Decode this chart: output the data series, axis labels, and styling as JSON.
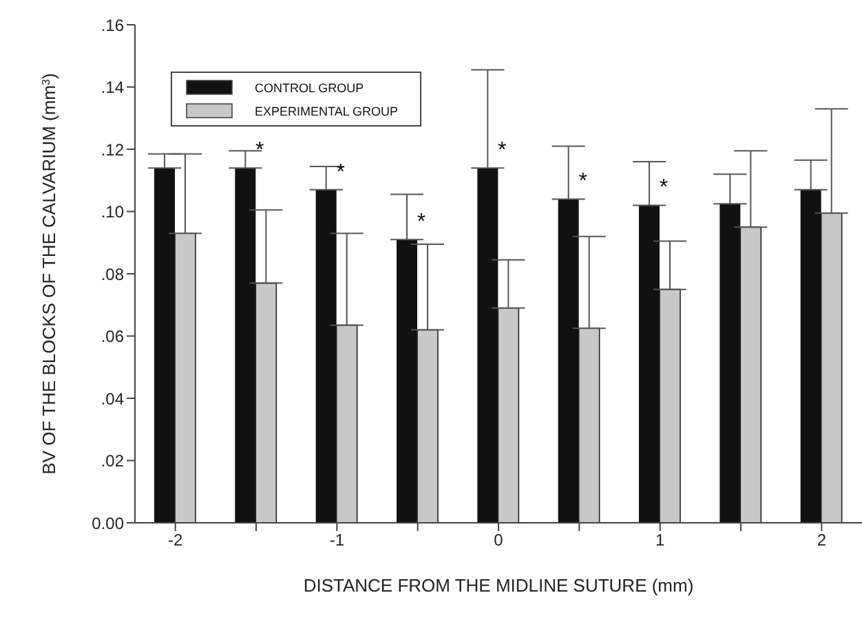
{
  "chart_data": {
    "type": "bar",
    "xlabel": "DISTANCE FROM THE MIDLINE SUTURE (mm)",
    "ylabel": "BV OF THE BLOCKS OF THE CALVARIUM (mm$^{3}$)",
    "categories": [
      "-2",
      null,
      "-1",
      null,
      "0",
      null,
      "1",
      null,
      "2"
    ],
    "series": [
      {
        "name": "CONTROL GROUP",
        "color": "#111111",
        "values": [
          0.114,
          0.114,
          0.107,
          0.091,
          0.114,
          0.104,
          0.102,
          0.1025,
          0.107
        ],
        "errors": [
          [
            0.114,
            0.1185
          ],
          [
            0.114,
            0.1195
          ],
          [
            0.107,
            0.1145
          ],
          [
            0.091,
            0.1055
          ],
          [
            0.114,
            0.1455
          ],
          [
            0.104,
            0.121
          ],
          [
            0.102,
            0.116
          ],
          [
            0.1025,
            0.112
          ],
          [
            0.107,
            0.1165
          ]
        ],
        "value_labels": [
          null,
          "*",
          "*",
          "*",
          "*",
          "*",
          "*",
          null,
          null
        ]
      },
      {
        "name": "EXPERIMENTAL GROUP",
        "color": "#c8c8c8",
        "values": [
          0.093,
          0.077,
          0.0635,
          0.062,
          0.069,
          0.0625,
          0.075,
          0.095,
          0.0995
        ],
        "errors": [
          [
            0.093,
            0.1185
          ],
          [
            0.077,
            0.1005
          ],
          [
            0.0635,
            0.093
          ],
          [
            0.062,
            0.0895
          ],
          [
            0.069,
            0.0845
          ],
          [
            0.0625,
            0.092
          ],
          [
            0.075,
            0.0905
          ],
          [
            0.095,
            0.1195
          ],
          [
            0.0995,
            0.133
          ]
        ]
      }
    ],
    "ylim": [
      0,
      0.16
    ],
    "yticks": [
      {
        "value": 0,
        "label": "0.00"
      },
      {
        "value": 0.02,
        "label": ".02"
      },
      {
        "value": 0.04,
        "label": ".04"
      },
      {
        "value": 0.06,
        "label": ".06"
      },
      {
        "value": 0.08,
        "label": ".08"
      },
      {
        "value": 0.1,
        "label": ".10"
      },
      {
        "value": 0.12,
        "label": ".12"
      },
      {
        "value": 0.14,
        "label": ".14"
      },
      {
        "value": 0.16,
        "label": ".16"
      }
    ],
    "grid": false,
    "legend": "top left"
  }
}
